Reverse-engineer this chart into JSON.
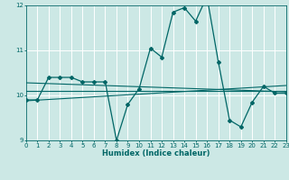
{
  "xlabel": "Humidex (Indice chaleur)",
  "bg_color": "#cce8e5",
  "grid_color": "#ffffff",
  "line_color": "#006666",
  "xlim": [
    0,
    23
  ],
  "ylim": [
    9,
    12
  ],
  "yticks": [
    9,
    10,
    11,
    12
  ],
  "xticks": [
    0,
    1,
    2,
    3,
    4,
    5,
    6,
    7,
    8,
    9,
    10,
    11,
    12,
    13,
    14,
    15,
    16,
    17,
    18,
    19,
    20,
    21,
    22,
    23
  ],
  "series_y": [
    9.9,
    9.9,
    10.4,
    10.4,
    10.4,
    10.3,
    10.3,
    10.3,
    9.0,
    9.8,
    10.15,
    11.05,
    10.85,
    11.85,
    11.95,
    11.65,
    12.2,
    10.75,
    9.45,
    9.3,
    9.85,
    10.2,
    10.05,
    10.05
  ],
  "trend_lines": [
    {
      "x": [
        0,
        23
      ],
      "y": [
        10.28,
        10.08
      ]
    },
    {
      "x": [
        0,
        23
      ],
      "y": [
        9.88,
        10.22
      ]
    },
    {
      "x": [
        0,
        23
      ],
      "y": [
        10.1,
        10.1
      ]
    }
  ]
}
